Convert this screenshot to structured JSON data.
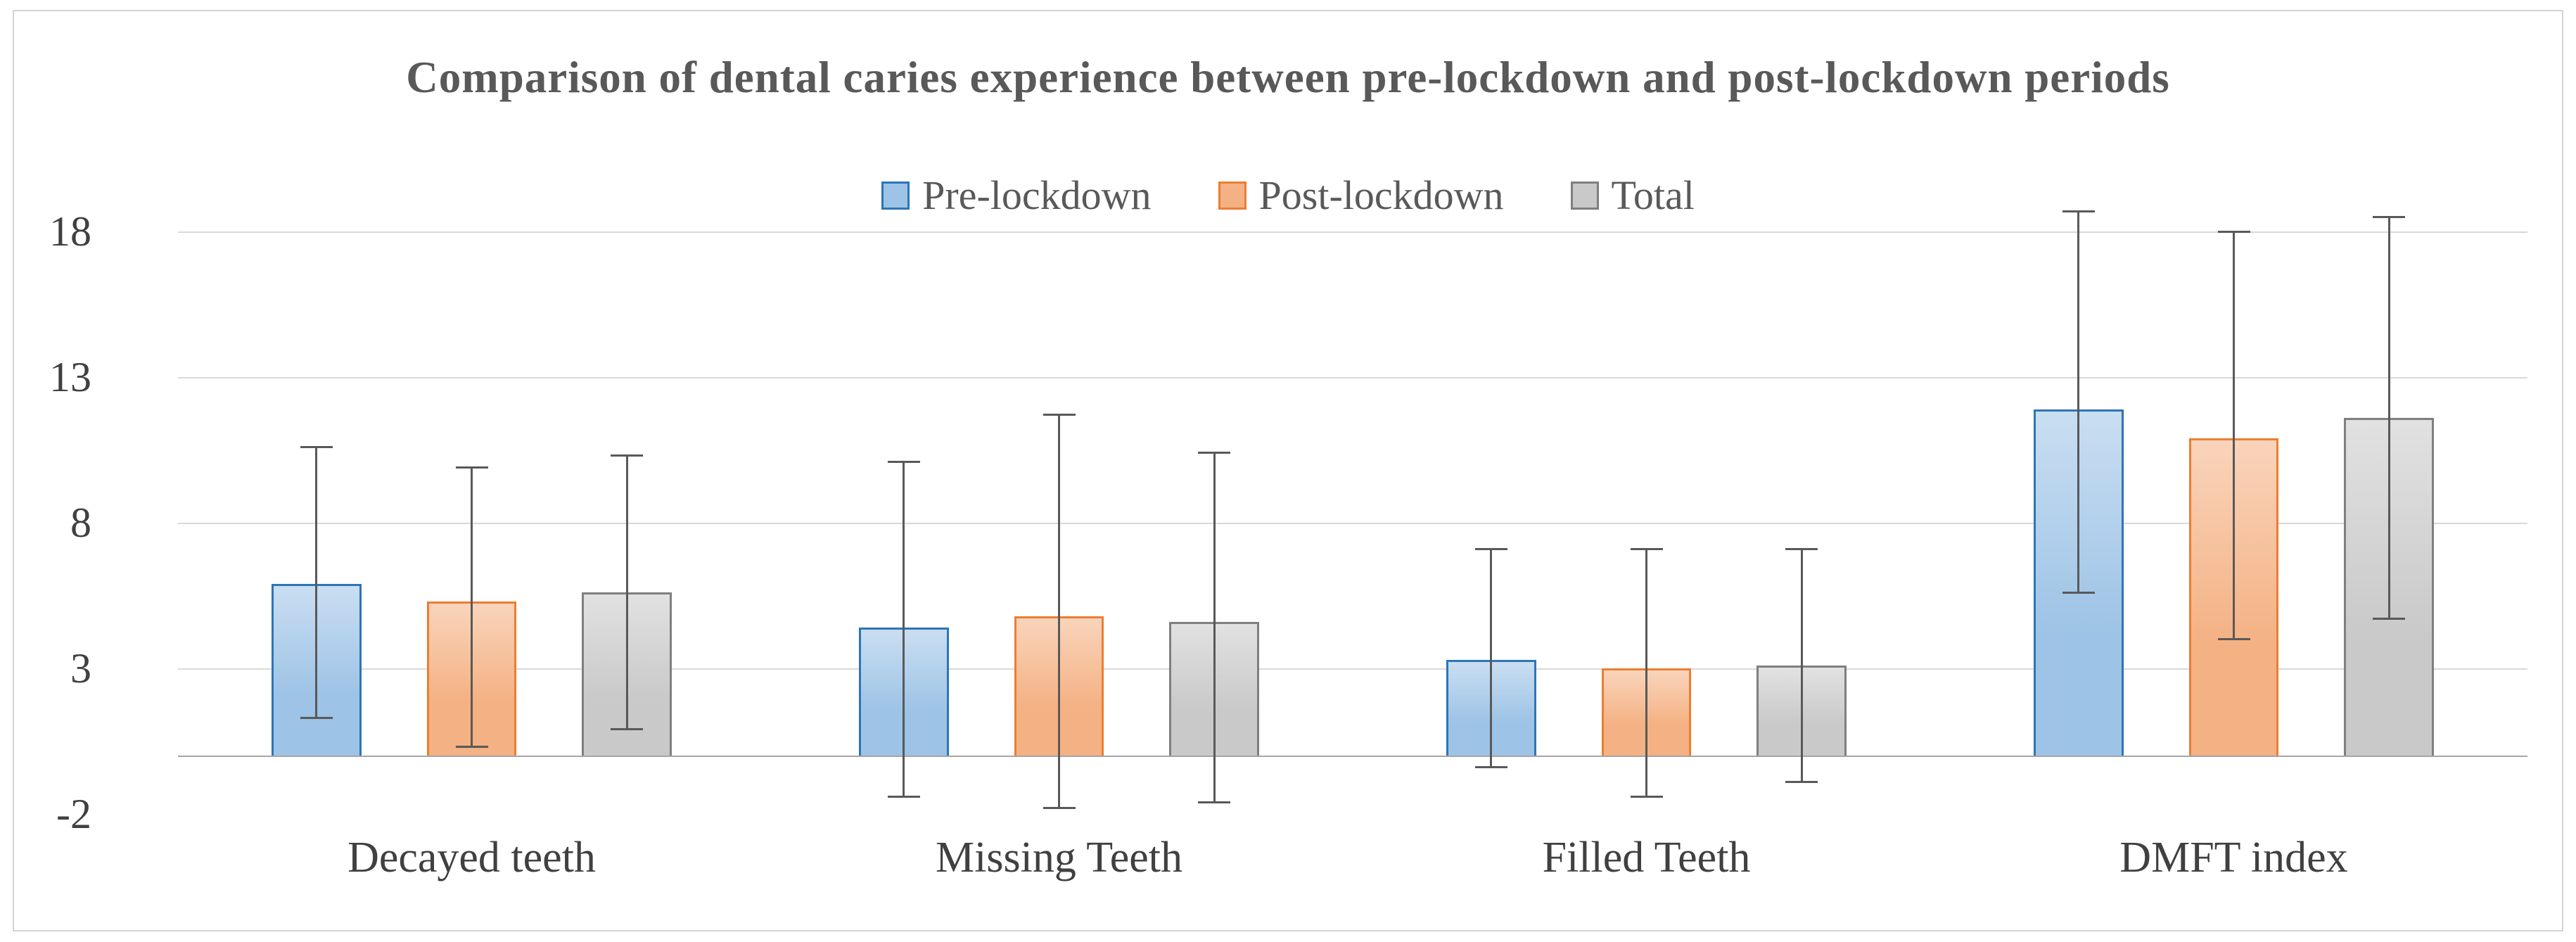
{
  "chart_data": {
    "type": "bar",
    "title": "Comparison of dental caries experience between pre-lockdown and post-lockdown periods",
    "categories": [
      "Decayed teeth",
      "Missing Teeth",
      "Filled Teeth",
      "DMFT index"
    ],
    "series": [
      {
        "name": "Pre-lockdown",
        "values": [
          5.9,
          4.4,
          3.3,
          11.9
        ],
        "error_low": [
          1.3,
          -1.4,
          -0.4,
          5.6
        ],
        "error_high": [
          10.6,
          10.1,
          7.1,
          18.7
        ],
        "fill": "#9DC3E6",
        "border": "#2E75B6"
      },
      {
        "name": "Post-lockdown",
        "values": [
          5.3,
          4.8,
          3.0,
          10.9
        ],
        "error_low": [
          0.3,
          -1.8,
          -1.4,
          4.0
        ],
        "error_high": [
          9.9,
          11.7,
          7.1,
          18.0
        ],
        "fill": "#F4B183",
        "border": "#ED7D31"
      },
      {
        "name": "Total",
        "values": [
          5.6,
          4.6,
          3.1,
          11.6
        ],
        "error_low": [
          0.9,
          -1.6,
          -0.9,
          4.7
        ],
        "error_high": [
          10.3,
          10.4,
          7.1,
          18.5
        ],
        "fill": "#C9C9C9",
        "border": "#7F7F7F"
      }
    ],
    "y_ticks": [
      -2,
      3,
      8,
      13,
      18
    ],
    "ylim": [
      -2,
      19.6
    ],
    "grid": true,
    "legend_position": "top",
    "error_bar_color": "#595959",
    "colors": {
      "title_text": "#595959",
      "axis_text": "#404040",
      "gridline": "#D9D9D9",
      "zero_line": "#A6A6A6",
      "frame_border": "#D3D3D3"
    }
  }
}
